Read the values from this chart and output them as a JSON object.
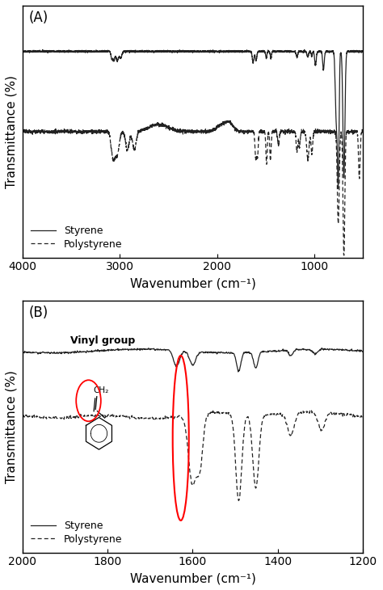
{
  "panel_A": {
    "xmin": 4000,
    "xmax": 500,
    "xlabel": "Wavenumber (cm⁻¹)",
    "ylabel": "Transmittance (%)",
    "label": "(A)",
    "legend": [
      "Styrene",
      "Polystyrene"
    ],
    "styrene_base": 0.9,
    "poly_base": 0.55
  },
  "panel_B": {
    "xmin": 2000,
    "xmax": 1200,
    "xlabel": "Wavenumber (cm⁻¹)",
    "ylabel": "Transmittance (%)",
    "label": "(B)",
    "legend": [
      "Styrene",
      "Polystyrene"
    ],
    "vinyl_label": "Vinyl group",
    "styrene_base": 0.88,
    "poly_base": 0.6
  },
  "bg_color": "#ffffff",
  "line_color": "#222222"
}
